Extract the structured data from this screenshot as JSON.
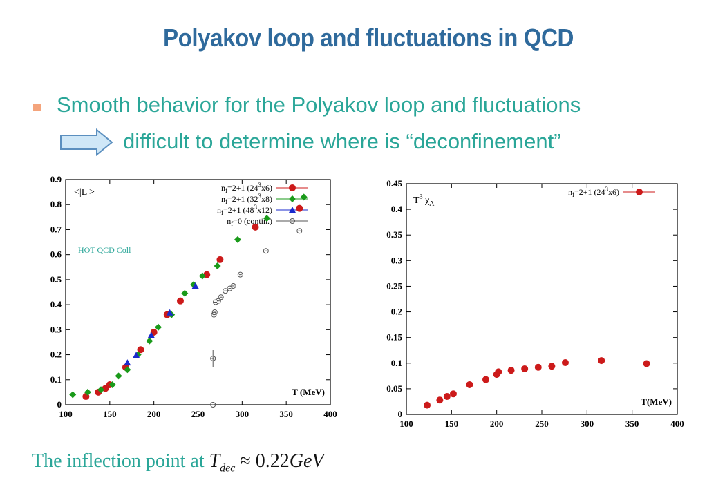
{
  "slide": {
    "title": "Polyakov loop and fluctuations in QCD",
    "bullet": "Smooth behavior for the Polyakov loop and fluctuations",
    "sub_bullet": "difficult to  determine where is “deconfinement”",
    "bottom_prefix": "The inflection point at ",
    "bottom_T": "T",
    "bottom_sub": "dec",
    "bottom_approx": " ≈ ",
    "bottom_value": "0.22",
    "bottom_unit": "GeV",
    "colors": {
      "title": "#2f6a9c",
      "teal": "#2aa698",
      "bullet": "#f4a47c",
      "arrow_fill": "#cfe7f7",
      "arrow_stroke": "#5b8fbf"
    }
  },
  "chart_data": [
    {
      "type": "scatter",
      "ylabel_inside": "<|L|>",
      "xlabel_inside": "T (MeV)",
      "annotation": "HOT QCD Coll",
      "xlim": [
        100,
        400
      ],
      "ylim": [
        0,
        0.9
      ],
      "xticks": [
        "100",
        "150",
        "200",
        "250",
        "300",
        "350",
        "400"
      ],
      "yticks": [
        "0",
        "0.1",
        "0.2",
        "0.3",
        "0.4",
        "0.5",
        "0.6",
        "0.7",
        "0.8",
        "0.9"
      ],
      "legend_position": "top-right",
      "series": [
        {
          "name": "nf=2+1 (24³x6)",
          "legend_main": "n",
          "legend_sub": "f",
          "legend_rest": "=2+1 (24",
          "legend_sup": "3",
          "legend_end": "x6)",
          "marker": "circle",
          "color": "#cc1a1a",
          "points": [
            [
              123,
              0.033
            ],
            [
              137,
              0.05
            ],
            [
              145,
              0.065
            ],
            [
              150,
              0.08
            ],
            [
              168,
              0.15
            ],
            [
              185,
              0.22
            ],
            [
              200,
              0.29
            ],
            [
              215,
              0.36
            ],
            [
              230,
              0.415
            ],
            [
              260,
              0.52
            ],
            [
              275,
              0.58
            ],
            [
              315,
              0.71
            ],
            [
              365,
              0.785
            ]
          ]
        },
        {
          "name": "nf=2+1 (32³x8)",
          "legend_main": "n",
          "legend_sub": "f",
          "legend_rest": "=2+1 (32",
          "legend_sup": "3",
          "legend_end": "x8)",
          "marker": "diamond",
          "color": "#1a9a1a",
          "points": [
            [
              108,
              0.04
            ],
            [
              125,
              0.05
            ],
            [
              140,
              0.06
            ],
            [
              153,
              0.08
            ],
            [
              160,
              0.115
            ],
            [
              170,
              0.14
            ],
            [
              182,
              0.2
            ],
            [
              195,
              0.255
            ],
            [
              205,
              0.31
            ],
            [
              220,
              0.36
            ],
            [
              235,
              0.445
            ],
            [
              245,
              0.48
            ],
            [
              255,
              0.515
            ],
            [
              272,
              0.555
            ],
            [
              295,
              0.66
            ],
            [
              328,
              0.745
            ],
            [
              370,
              0.83
            ]
          ]
        },
        {
          "name": "nf=2+1 (48³x12)",
          "legend_main": "n",
          "legend_sub": "f",
          "legend_rest": "=2+1 (48",
          "legend_sup": "3",
          "legend_end": "x12)",
          "marker": "triangle",
          "color": "#1a2acc",
          "points": [
            [
              170,
              0.168
            ],
            [
              180,
              0.198
            ],
            [
              197,
              0.278
            ],
            [
              218,
              0.368
            ],
            [
              247,
              0.475
            ]
          ]
        },
        {
          "name": "nf=0 (contin.)",
          "legend_main": "n",
          "legend_sub": "f",
          "legend_rest": "=0 (contin.)",
          "legend_sup": "",
          "legend_end": "",
          "marker": "open-circle",
          "color": "#555555",
          "points": [
            [
              267,
              0.0
            ],
            [
              267,
              0.185
            ],
            [
              268,
              0.36
            ],
            [
              269,
              0.37
            ],
            [
              270,
              0.41
            ],
            [
              273,
              0.415
            ],
            [
              276,
              0.43
            ],
            [
              281,
              0.455
            ],
            [
              286,
              0.465
            ],
            [
              290,
              0.475
            ],
            [
              298,
              0.52
            ],
            [
              327,
              0.615
            ],
            [
              365,
              0.695
            ]
          ]
        }
      ]
    },
    {
      "type": "scatter",
      "ylabel_inside": "T³ χA",
      "ylabel_T": "T",
      "ylabel_sup": "3",
      "ylabel_chi": " χ",
      "ylabel_sub": "A",
      "xlabel_inside": "T(MeV)",
      "xlim": [
        100,
        400
      ],
      "ylim": [
        0,
        0.45
      ],
      "xticks": [
        "100",
        "150",
        "200",
        "250",
        "300",
        "350",
        "400"
      ],
      "yticks": [
        "0",
        "0.05",
        "0.1",
        "0.15",
        "0.2",
        "0.25",
        "0.3",
        "0.35",
        "0.4",
        "0.45"
      ],
      "legend_position": "top-right",
      "series": [
        {
          "name": "nf=2+1 (24³x6)",
          "legend_main": "n",
          "legend_sub": "f",
          "legend_rest": "=2+1 (24",
          "legend_sup": "3",
          "legend_end": "x6)",
          "marker": "circle",
          "color": "#cc1a1a",
          "points": [
            [
              123,
              0.018
            ],
            [
              137,
              0.028
            ],
            [
              145,
              0.035
            ],
            [
              152,
              0.04
            ],
            [
              170,
              0.058
            ],
            [
              188,
              0.068
            ],
            [
              200,
              0.078
            ],
            [
              202,
              0.083
            ],
            [
              216,
              0.086
            ],
            [
              231,
              0.089
            ],
            [
              246,
              0.092
            ],
            [
              261,
              0.094
            ],
            [
              276,
              0.101
            ],
            [
              316,
              0.105
            ],
            [
              366,
              0.099
            ]
          ]
        }
      ]
    }
  ]
}
